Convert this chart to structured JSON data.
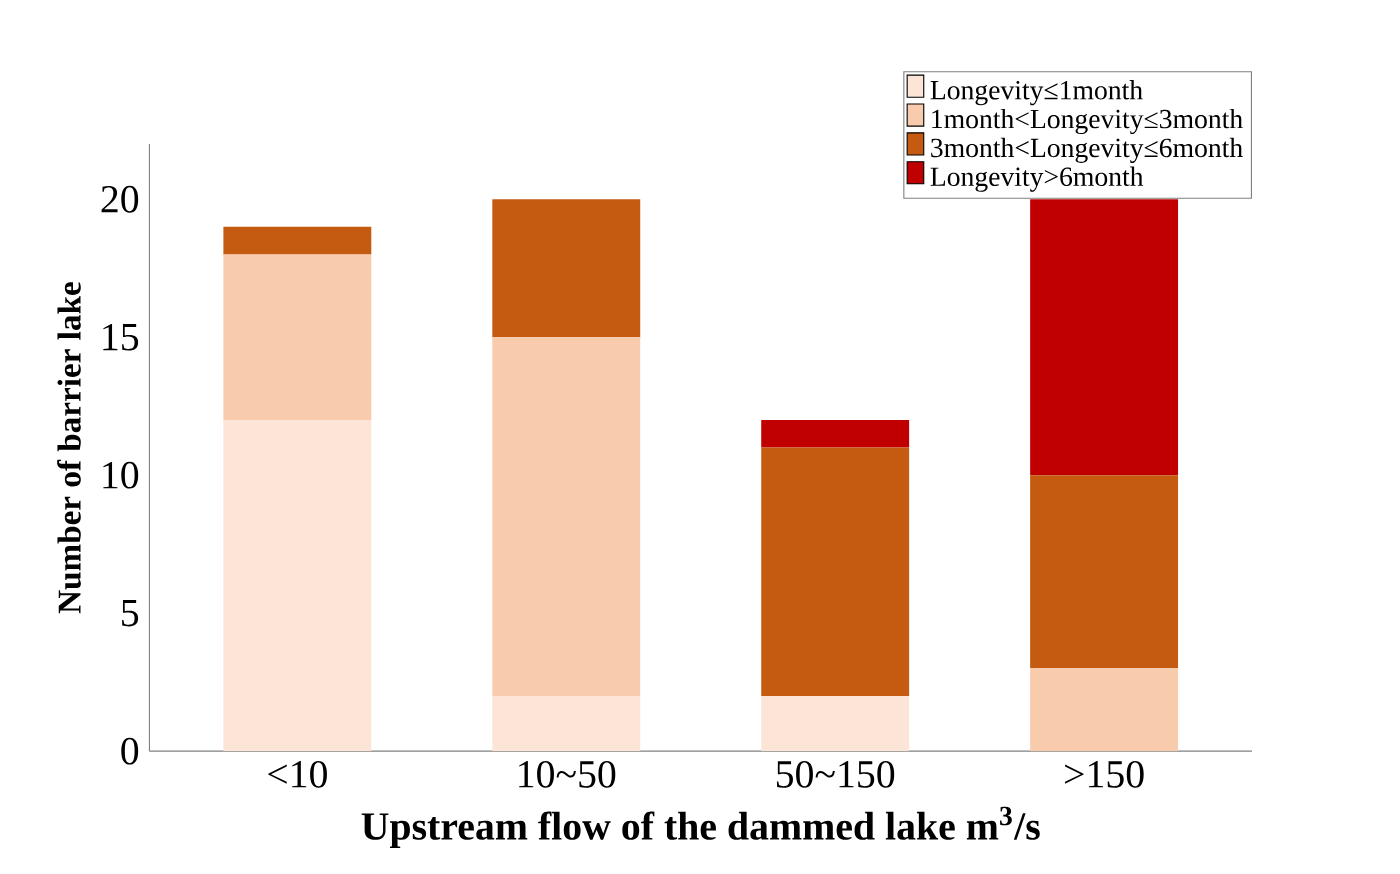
{
  "chart_data": {
    "type": "bar",
    "stacked": true,
    "xlabel": "Upstream flow of the dammed lake m$^{3}$/s",
    "ylabel": "Number of barrier lake",
    "categories": [
      "<10",
      "10~50",
      "50~150",
      ">150"
    ],
    "series": [
      {
        "name": "Longevity≤1month",
        "color": "#fce4d6",
        "values": [
          12,
          2,
          2,
          0
        ]
      },
      {
        "name": "1month<Longevity≤3month",
        "color": "#f8cbad",
        "values": [
          6,
          13,
          0,
          3
        ]
      },
      {
        "name": "3month<Longevity≤6month",
        "color": "#c55a11",
        "values": [
          1,
          5,
          9,
          7
        ]
      },
      {
        "name": "Longevity>6month",
        "color": "#c00000",
        "values": [
          0,
          0,
          1,
          10
        ]
      }
    ],
    "ylim": [
      0,
      22
    ],
    "yticks": [
      0,
      5,
      10,
      15,
      20
    ],
    "grid": false,
    "legend": "top right"
  }
}
